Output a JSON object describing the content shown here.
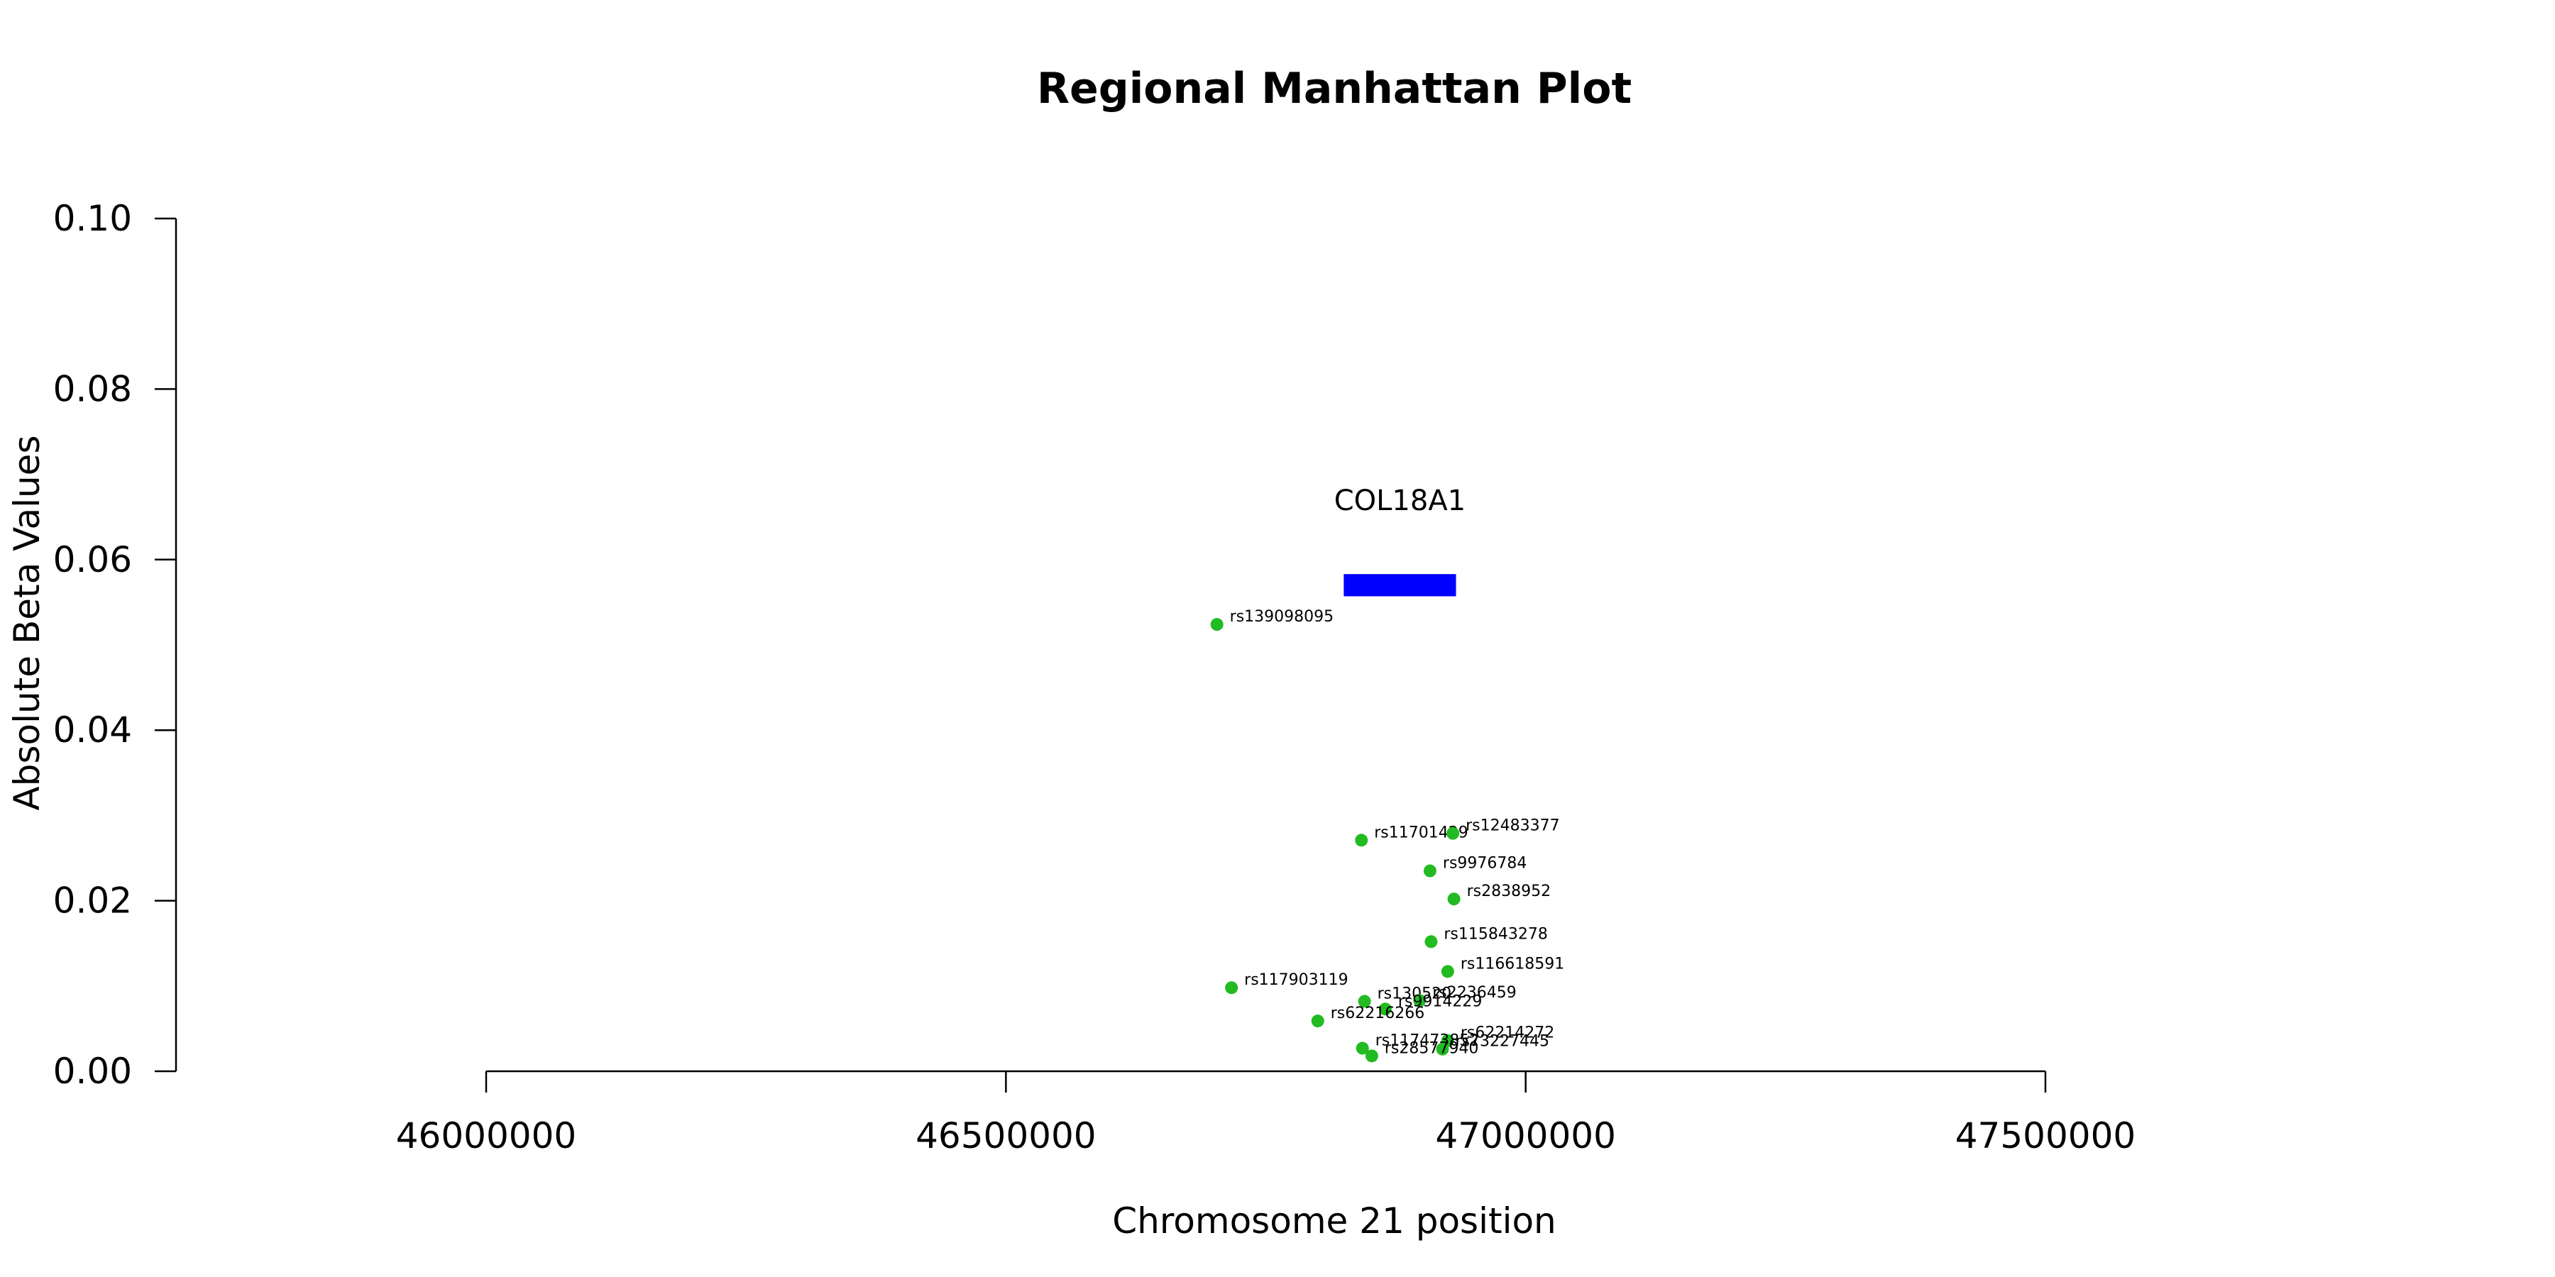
{
  "chart_data": {
    "type": "scatter",
    "title": "Regional Manhattan Plot",
    "xlabel": "Chromosome 21 position",
    "ylabel": "Absolute Beta Values",
    "xlim": [
      45700000,
      47500000
    ],
    "ylim": [
      0,
      0.1
    ],
    "x_ticks": [
      46000000,
      46500000,
      47000000,
      47500000
    ],
    "x_tick_labels": [
      "46000000",
      "46500000",
      "47000000",
      "47500000"
    ],
    "y_ticks": [
      0,
      0.02,
      0.04,
      0.06,
      0.08,
      0.1
    ],
    "y_tick_labels": [
      "0.00",
      "0.02",
      "0.04",
      "0.06",
      "0.08",
      "0.10"
    ],
    "point_color": "#22bb22",
    "gene_color": "#0000ff",
    "gene": {
      "name": "COL18A1",
      "start": 46825000,
      "end": 46933000,
      "y_low": 0.0557,
      "y_high": 0.0583
    },
    "points": [
      {
        "id": "rs139098095",
        "x": 46703000,
        "y": 0.0524
      },
      {
        "id": "rs11701429",
        "x": 46842000,
        "y": 0.0271
      },
      {
        "id": "rs12483377",
        "x": 46930000,
        "y": 0.0279
      },
      {
        "id": "rs9976784",
        "x": 46908000,
        "y": 0.0235
      },
      {
        "id": "rs2838952",
        "x": 46931000,
        "y": 0.0202
      },
      {
        "id": "rs115843278",
        "x": 46909000,
        "y": 0.0152
      },
      {
        "id": "rs116618591",
        "x": 46925000,
        "y": 0.0117
      },
      {
        "id": "rs117903119",
        "x": 46717000,
        "y": 0.0098
      },
      {
        "id": "rs130520",
        "x": 46845000,
        "y": 0.0082
      },
      {
        "id": "rs2236459",
        "x": 46898000,
        "y": 0.0083
      },
      {
        "id": "rs9914229",
        "x": 46865000,
        "y": 0.0073
      },
      {
        "id": "rs62216266",
        "x": 46800000,
        "y": 0.0059
      },
      {
        "id": "rs62214272",
        "x": 46925000,
        "y": 0.0036
      },
      {
        "id": "rs117473852",
        "x": 46843000,
        "y": 0.0027
      },
      {
        "id": "rs73227445",
        "x": 46920000,
        "y": 0.0026
      },
      {
        "id": "rs28577940",
        "x": 46852000,
        "y": 0.0018
      }
    ]
  }
}
